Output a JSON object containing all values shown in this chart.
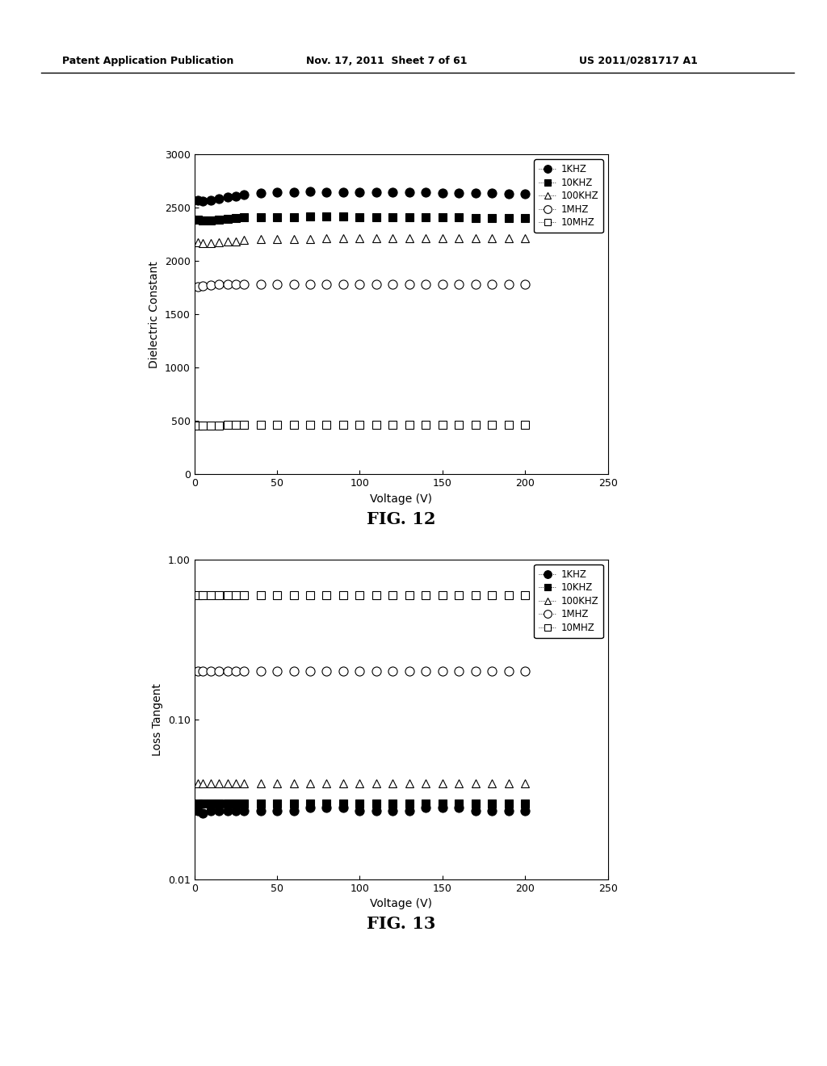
{
  "header_left": "Patent Application Publication",
  "header_mid": "Nov. 17, 2011  Sheet 7 of 61",
  "header_right": "US 2011/0281717 A1",
  "fig12_title": "FIG. 12",
  "fig13_title": "FIG. 13",
  "xlabel": "Voltage (V)",
  "fig12_ylabel": "Dielectric Constant",
  "fig13_ylabel": "Loss Tangent",
  "fig12_ylim": [
    0,
    3000
  ],
  "fig12_yticks": [
    0,
    500,
    1000,
    1500,
    2000,
    2500,
    3000
  ],
  "fig13_ylim_log": [
    0.01,
    1.0
  ],
  "xlim": [
    0,
    250
  ],
  "xticks": [
    0,
    50,
    100,
    150,
    200,
    250
  ],
  "voltage_x": [
    2,
    5,
    10,
    15,
    20,
    25,
    30,
    40,
    50,
    60,
    70,
    80,
    90,
    100,
    110,
    120,
    130,
    140,
    150,
    160,
    170,
    180,
    190,
    200
  ],
  "series": [
    {
      "label": "1KHZ",
      "marker": "o",
      "fillstyle": "full",
      "markersize": 8,
      "fig12_values": [
        2570,
        2565,
        2575,
        2585,
        2600,
        2610,
        2625,
        2640,
        2645,
        2650,
        2655,
        2650,
        2650,
        2650,
        2650,
        2650,
        2645,
        2645,
        2640,
        2640,
        2640,
        2640,
        2635,
        2635
      ],
      "fig13_values": [
        0.027,
        0.026,
        0.027,
        0.027,
        0.027,
        0.027,
        0.027,
        0.027,
        0.027,
        0.027,
        0.028,
        0.028,
        0.028,
        0.027,
        0.027,
        0.027,
        0.027,
        0.028,
        0.028,
        0.028,
        0.027,
        0.027,
        0.027,
        0.027
      ]
    },
    {
      "label": "10KHZ",
      "marker": "s",
      "fillstyle": "full",
      "markersize": 7,
      "fig12_values": [
        2390,
        2380,
        2385,
        2390,
        2400,
        2405,
        2410,
        2415,
        2415,
        2415,
        2420,
        2420,
        2420,
        2415,
        2415,
        2415,
        2415,
        2415,
        2415,
        2415,
        2405,
        2405,
        2405,
        2405
      ],
      "fig13_values": [
        0.03,
        0.03,
        0.03,
        0.03,
        0.03,
        0.03,
        0.03,
        0.03,
        0.03,
        0.03,
        0.03,
        0.03,
        0.03,
        0.03,
        0.03,
        0.03,
        0.03,
        0.03,
        0.03,
        0.03,
        0.03,
        0.03,
        0.03,
        0.03
      ]
    },
    {
      "label": "100KHZ",
      "marker": "^",
      "fillstyle": "none",
      "markersize": 7,
      "fig12_values": [
        2175,
        2170,
        2172,
        2178,
        2183,
        2188,
        2198,
        2205,
        2210,
        2210,
        2210,
        2212,
        2212,
        2212,
        2212,
        2212,
        2212,
        2212,
        2212,
        2212,
        2212,
        2212,
        2212,
        2212
      ],
      "fig13_values": [
        0.04,
        0.04,
        0.04,
        0.04,
        0.04,
        0.04,
        0.04,
        0.04,
        0.04,
        0.04,
        0.04,
        0.04,
        0.04,
        0.04,
        0.04,
        0.04,
        0.04,
        0.04,
        0.04,
        0.04,
        0.04,
        0.04,
        0.04,
        0.04
      ]
    },
    {
      "label": "1MHZ",
      "marker": "o",
      "fillstyle": "none",
      "markersize": 8,
      "fig12_values": [
        1760,
        1768,
        1775,
        1782,
        1785,
        1785,
        1785,
        1785,
        1785,
        1785,
        1785,
        1785,
        1785,
        1785,
        1785,
        1785,
        1785,
        1785,
        1785,
        1785,
        1785,
        1785,
        1785,
        1785
      ],
      "fig13_values": [
        0.2,
        0.2,
        0.2,
        0.2,
        0.2,
        0.2,
        0.2,
        0.2,
        0.2,
        0.2,
        0.2,
        0.2,
        0.2,
        0.2,
        0.2,
        0.2,
        0.2,
        0.2,
        0.2,
        0.2,
        0.2,
        0.2,
        0.2,
        0.2
      ]
    },
    {
      "label": "10MHZ",
      "marker": "s",
      "fillstyle": "none",
      "markersize": 7,
      "fig12_values": [
        455,
        458,
        460,
        460,
        462,
        462,
        462,
        462,
        462,
        462,
        462,
        462,
        462,
        462,
        462,
        462,
        462,
        462,
        462,
        462,
        462,
        462,
        462,
        462
      ],
      "fig13_values": [
        0.6,
        0.6,
        0.6,
        0.6,
        0.6,
        0.6,
        0.6,
        0.6,
        0.6,
        0.6,
        0.6,
        0.6,
        0.6,
        0.6,
        0.6,
        0.6,
        0.6,
        0.6,
        0.6,
        0.6,
        0.6,
        0.6,
        0.6,
        0.6
      ]
    }
  ],
  "background_color": "#ffffff",
  "header_fontsize": 9,
  "fig_label_fontsize": 15
}
